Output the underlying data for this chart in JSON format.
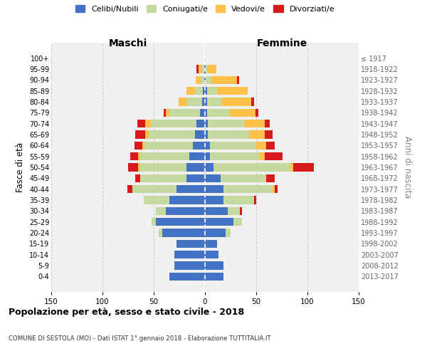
{
  "age_groups": [
    "0-4",
    "5-9",
    "10-14",
    "15-19",
    "20-24",
    "25-29",
    "30-34",
    "35-39",
    "40-44",
    "45-49",
    "50-54",
    "55-59",
    "60-64",
    "65-69",
    "70-74",
    "75-79",
    "80-84",
    "85-89",
    "90-94",
    "95-99",
    "100+"
  ],
  "birth_years": [
    "2013-2017",
    "2008-2012",
    "2003-2007",
    "1998-2002",
    "1993-1997",
    "1988-1992",
    "1983-1987",
    "1978-1982",
    "1973-1977",
    "1968-1972",
    "1963-1967",
    "1958-1962",
    "1953-1957",
    "1948-1952",
    "1943-1947",
    "1938-1942",
    "1933-1937",
    "1928-1932",
    "1923-1927",
    "1918-1922",
    "≤ 1917"
  ],
  "colors": {
    "celibe": "#4472C4",
    "coniugato": "#c5d9a0",
    "vedovo": "#ffc04a",
    "divorziato": "#d7191c"
  },
  "males": {
    "celibe": [
      35,
      30,
      30,
      28,
      42,
      48,
      38,
      35,
      28,
      18,
      18,
      15,
      12,
      10,
      8,
      5,
      3,
      2,
      1,
      1,
      0
    ],
    "coniugato": [
      0,
      0,
      0,
      0,
      3,
      4,
      10,
      25,
      43,
      45,
      45,
      48,
      47,
      45,
      45,
      30,
      15,
      8,
      3,
      2,
      0
    ],
    "vedovo": [
      0,
      0,
      0,
      0,
      0,
      0,
      0,
      0,
      0,
      0,
      2,
      2,
      2,
      3,
      5,
      3,
      8,
      8,
      5,
      3,
      0
    ],
    "divorziato": [
      0,
      0,
      0,
      0,
      0,
      0,
      0,
      0,
      5,
      5,
      10,
      8,
      8,
      10,
      8,
      2,
      0,
      0,
      0,
      2,
      0
    ]
  },
  "females": {
    "celibe": [
      18,
      18,
      13,
      12,
      20,
      28,
      22,
      18,
      18,
      15,
      8,
      5,
      5,
      3,
      3,
      2,
      2,
      2,
      1,
      1,
      0
    ],
    "coniugato": [
      0,
      0,
      0,
      0,
      5,
      8,
      12,
      30,
      48,
      45,
      75,
      48,
      45,
      40,
      35,
      22,
      15,
      10,
      5,
      2,
      0
    ],
    "vedovo": [
      0,
      0,
      0,
      0,
      0,
      0,
      0,
      0,
      2,
      0,
      3,
      5,
      10,
      15,
      20,
      25,
      28,
      30,
      25,
      8,
      1
    ],
    "divorziato": [
      0,
      0,
      0,
      0,
      0,
      0,
      2,
      2,
      3,
      8,
      20,
      18,
      8,
      8,
      5,
      3,
      3,
      0,
      2,
      0,
      0
    ]
  },
  "title": "Popolazione per età, sesso e stato civile - 2018",
  "subtitle": "COMUNE DI SESTOLA (MO) - Dati ISTAT 1° gennaio 2018 - Elaborazione TUTTITALIA.IT",
  "ylabel_left": "Fasce di età",
  "ylabel_right": "Anni di nascita",
  "xlabel_left": "Maschi",
  "xlabel_right": "Femmine",
  "xlim": 150,
  "legend_labels": [
    "Celibi/Nubili",
    "Coniugati/e",
    "Vedovi/e",
    "Divorziati/e"
  ],
  "bg_color": "#f0f0f0",
  "grid_color": "#cccccc"
}
